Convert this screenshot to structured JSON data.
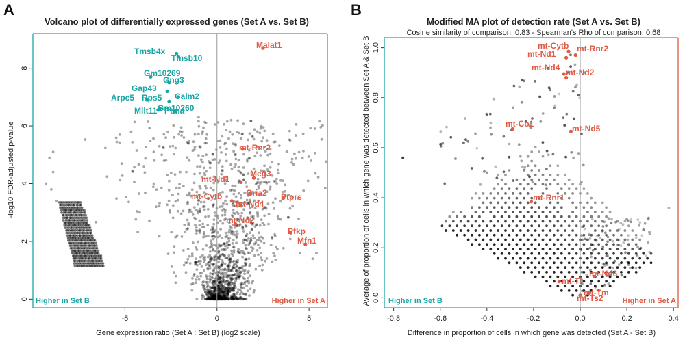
{
  "colors": {
    "teal": "#1aa6a6",
    "red": "#e05a44",
    "point": "#000000"
  },
  "chart_data": [
    {
      "type": "scatter",
      "panel_label": "A",
      "title": "Volcano plot of differentially expressed genes (Set A vs. Set B)",
      "subtitle": "",
      "xlabel": "Gene expression ratio (Set A : Set B) (log2 scale)",
      "ylabel": "-log10 FDR-adjusted p-value",
      "xlim": [
        -10,
        6
      ],
      "ylim": [
        -0.3,
        9.2
      ],
      "xticks": [
        -5,
        0,
        5
      ],
      "yticks": [
        0,
        2,
        4,
        6,
        8
      ],
      "vline_x": 0,
      "corner_left": "Higher in Set B",
      "corner_right": "Higher in Set A",
      "highlighted": [
        {
          "label": "Malat1",
          "x": 2.5,
          "y": 8.7,
          "group": "A"
        },
        {
          "label": "Tmsb4x",
          "x": -2.2,
          "y": 8.5,
          "group": "B"
        },
        {
          "label": "Tmsb10",
          "x": -2.1,
          "y": 8.4,
          "group": "B"
        },
        {
          "label": "Gm10269",
          "x": -3.6,
          "y": 7.7,
          "group": "B"
        },
        {
          "label": "Gng3",
          "x": -2.6,
          "y": 7.5,
          "group": "B"
        },
        {
          "label": "Gap43",
          "x": -2.7,
          "y": 7.2,
          "group": "B"
        },
        {
          "label": "Calm2",
          "x": -2.1,
          "y": 7.0,
          "group": "B"
        },
        {
          "label": "Arpc5",
          "x": -3.8,
          "y": 6.9,
          "group": "B"
        },
        {
          "label": "Rps5",
          "x": -2.6,
          "y": 6.85,
          "group": "B"
        },
        {
          "label": "Gm10260",
          "x": -3.1,
          "y": 6.6,
          "group": "B"
        },
        {
          "label": "Mllt11",
          "x": -3.2,
          "y": 6.55,
          "group": "B"
        },
        {
          "label": "Ptma",
          "x": -2.3,
          "y": 6.5,
          "group": "B"
        },
        {
          "label": "mt-Rnr2",
          "x": 1.4,
          "y": 5.2,
          "group": "A"
        },
        {
          "label": "Meg3",
          "x": 2.0,
          "y": 4.2,
          "group": "A"
        },
        {
          "label": "mt-Nd1",
          "x": 1.3,
          "y": 4.05,
          "group": "A"
        },
        {
          "label": "Gria2",
          "x": 1.8,
          "y": 3.65,
          "group": "A"
        },
        {
          "label": "Ptprs",
          "x": 3.6,
          "y": 3.5,
          "group": "A"
        },
        {
          "label": "mt-Cytb",
          "x": 0.8,
          "y": 3.4,
          "group": "A"
        },
        {
          "label": "mt-Nd4",
          "x": 1.3,
          "y": 3.25,
          "group": "A"
        },
        {
          "label": "mt-Nd2",
          "x": 1.0,
          "y": 2.6,
          "group": "A"
        },
        {
          "label": "Pfkp",
          "x": 4.0,
          "y": 2.3,
          "group": "A"
        },
        {
          "label": "Mfn1",
          "x": 4.8,
          "y": 1.9,
          "group": "A"
        }
      ]
    },
    {
      "type": "scatter",
      "panel_label": "B",
      "title": "Modified MA plot of detection rate (Set A vs. Set B)",
      "subtitle": "Cosine similarity of comparison: 0.83  -  Spearman's Rho of comparison: 0.68",
      "xlabel": "Difference in proportion of cells in which gene was detected (Set A - Set B)",
      "ylabel": "Average of proportion of cells in which gene was detected between Set A & Set B",
      "xlim": [
        -0.84,
        0.42
      ],
      "ylim": [
        -0.04,
        1.04
      ],
      "xticks": [
        -0.8,
        -0.6,
        -0.4,
        -0.2,
        0.0,
        0.2,
        0.4
      ],
      "xticklabels": [
        "-0.8",
        "-0.6",
        "-0.4",
        "-0.2",
        "0.0",
        "0.2",
        "0.4"
      ],
      "yticks": [
        0.0,
        0.2,
        0.4,
        0.6,
        0.8,
        1.0
      ],
      "yticklabels": [
        "0.0",
        "0.2",
        "0.4",
        "0.6",
        "0.8",
        "1.0"
      ],
      "vline_x": 0,
      "corner_left": "Higher in Set B",
      "corner_right": "Higher in Set A",
      "highlighted": [
        {
          "label": "mt-Cytb",
          "x": -0.05,
          "y": 0.985,
          "group": "A"
        },
        {
          "label": "mt-Rnr2",
          "x": -0.02,
          "y": 0.97,
          "group": "A"
        },
        {
          "label": "mt-Nd1",
          "x": -0.06,
          "y": 0.96,
          "group": "A"
        },
        {
          "label": "mt-Nd4",
          "x": -0.07,
          "y": 0.895,
          "group": "A"
        },
        {
          "label": "mt-Nd2",
          "x": -0.06,
          "y": 0.88,
          "group": "A"
        },
        {
          "label": "mt-Co1",
          "x": -0.29,
          "y": 0.675,
          "group": "A"
        },
        {
          "label": "mt-Nd5",
          "x": -0.04,
          "y": 0.665,
          "group": "A"
        },
        {
          "label": "mt-Rnr1",
          "x": -0.21,
          "y": 0.385,
          "group": "A"
        },
        {
          "label": "mt-Nd6",
          "x": 0.06,
          "y": 0.085,
          "group": "A"
        },
        {
          "label": "mt-Tl",
          "x": -0.09,
          "y": 0.065,
          "group": "A"
        },
        {
          "label": "mt-Tm",
          "x": 0.04,
          "y": 0.02,
          "group": "A"
        },
        {
          "label": "mt-Ts2",
          "x": 0.0,
          "y": 0.01,
          "group": "A"
        }
      ]
    }
  ]
}
